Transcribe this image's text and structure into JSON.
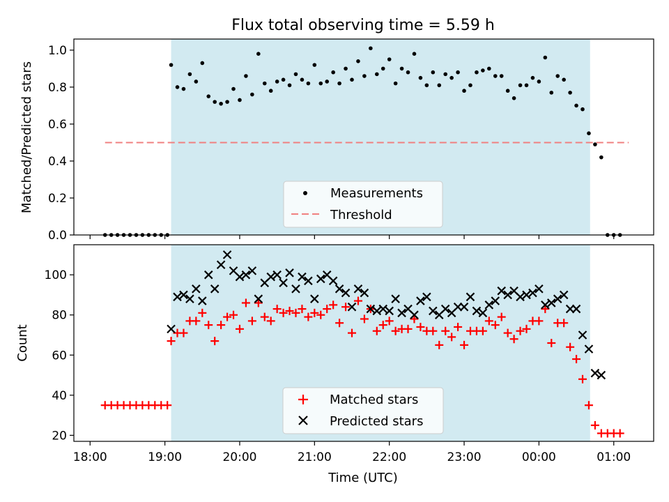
{
  "title": "Flux total observing time = 5.59 h",
  "chart_data": [
    {
      "type": "scatter",
      "panel": "top",
      "ylabel": "Matched/Predicted stars",
      "ylim": [
        0,
        1.06
      ],
      "yticks": [
        0.0,
        0.2,
        0.4,
        0.6,
        0.8,
        1.0
      ],
      "ytick_labels": [
        "0.0",
        "0.2",
        "0.4",
        "0.6",
        "0.8",
        "1.0"
      ],
      "legend": {
        "position": "bottom-center",
        "entries": [
          "Measurements",
          "Threshold"
        ]
      },
      "shaded_interval": {
        "start": "19:05",
        "end": "00:41",
        "color": "#add8e6"
      },
      "threshold": {
        "value": 0.5,
        "x": [
          "18:12",
          "01:12"
        ],
        "color": "#f08080",
        "style": "dashed"
      },
      "series": [
        {
          "name": "Measurements",
          "color": "#000000",
          "marker": "dot",
          "x": [
            "18:12",
            "18:17",
            "18:22",
            "18:27",
            "18:32",
            "18:37",
            "18:42",
            "18:47",
            "18:52",
            "18:57",
            "19:02",
            "19:05",
            "19:10",
            "19:15",
            "19:20",
            "19:25",
            "19:30",
            "19:35",
            "19:40",
            "19:45",
            "19:50",
            "19:55",
            "20:00",
            "20:05",
            "20:10",
            "20:15",
            "20:20",
            "20:25",
            "20:30",
            "20:35",
            "20:40",
            "20:45",
            "20:50",
            "20:55",
            "21:00",
            "21:05",
            "21:10",
            "21:15",
            "21:20",
            "21:25",
            "21:30",
            "21:35",
            "21:40",
            "21:45",
            "21:50",
            "21:55",
            "22:00",
            "22:05",
            "22:10",
            "22:15",
            "22:20",
            "22:25",
            "22:30",
            "22:35",
            "22:40",
            "22:45",
            "22:50",
            "22:55",
            "23:00",
            "23:05",
            "23:10",
            "23:15",
            "23:20",
            "23:25",
            "23:30",
            "23:35",
            "23:40",
            "23:45",
            "23:50",
            "23:55",
            "00:00",
            "00:05",
            "00:10",
            "00:15",
            "00:20",
            "00:25",
            "00:30",
            "00:35",
            "00:40",
            "00:45",
            "00:50",
            "00:55",
            "01:00",
            "01:05"
          ],
          "y": [
            0,
            0,
            0,
            0,
            0,
            0,
            0,
            0,
            0,
            0,
            0,
            0.92,
            0.8,
            0.79,
            0.87,
            0.83,
            0.93,
            0.75,
            0.72,
            0.71,
            0.72,
            0.79,
            0.73,
            0.86,
            0.76,
            0.98,
            0.82,
            0.78,
            0.83,
            0.84,
            0.81,
            0.87,
            0.84,
            0.82,
            0.92,
            0.82,
            0.83,
            0.88,
            0.82,
            0.9,
            0.84,
            0.94,
            0.86,
            1.01,
            0.87,
            0.9,
            0.95,
            0.82,
            0.9,
            0.88,
            0.98,
            0.85,
            0.81,
            0.88,
            0.81,
            0.87,
            0.85,
            0.88,
            0.78,
            0.81,
            0.88,
            0.89,
            0.9,
            0.86,
            0.86,
            0.78,
            0.74,
            0.81,
            0.81,
            0.85,
            0.83,
            0.96,
            0.77,
            0.86,
            0.84,
            0.77,
            0.7,
            0.68,
            0.55,
            0.49,
            0.42,
            0,
            0,
            0
          ]
        }
      ]
    },
    {
      "type": "scatter",
      "panel": "bottom",
      "xlabel": "Time (UTC)",
      "ylabel": "Count",
      "ylim": [
        17,
        115
      ],
      "yticks": [
        20,
        40,
        60,
        80,
        100
      ],
      "xlim": [
        "17:47",
        "01:32"
      ],
      "xticks": [
        "18:00",
        "19:00",
        "20:00",
        "21:00",
        "22:00",
        "23:00",
        "00:00",
        "01:00"
      ],
      "legend": {
        "position": "bottom-center",
        "entries": [
          "Matched stars",
          "Predicted stars"
        ]
      },
      "shaded_interval": {
        "start": "19:05",
        "end": "00:41",
        "color": "#add8e6"
      },
      "series": [
        {
          "name": "Matched stars",
          "color": "#ff0000",
          "marker": "plus",
          "x": [
            "18:12",
            "18:17",
            "18:22",
            "18:27",
            "18:32",
            "18:37",
            "18:42",
            "18:47",
            "18:52",
            "18:57",
            "19:02",
            "19:05",
            "19:10",
            "19:15",
            "19:20",
            "19:25",
            "19:30",
            "19:35",
            "19:40",
            "19:45",
            "19:50",
            "19:55",
            "20:00",
            "20:05",
            "20:10",
            "20:15",
            "20:20",
            "20:25",
            "20:30",
            "20:35",
            "20:40",
            "20:45",
            "20:50",
            "20:55",
            "21:00",
            "21:05",
            "21:10",
            "21:15",
            "21:20",
            "21:25",
            "21:30",
            "21:35",
            "21:40",
            "21:45",
            "21:50",
            "21:55",
            "22:00",
            "22:05",
            "22:10",
            "22:15",
            "22:20",
            "22:25",
            "22:30",
            "22:35",
            "22:40",
            "22:45",
            "22:50",
            "22:55",
            "23:00",
            "23:05",
            "23:10",
            "23:15",
            "23:20",
            "23:25",
            "23:30",
            "23:35",
            "23:40",
            "23:45",
            "23:50",
            "23:55",
            "00:00",
            "00:05",
            "00:10",
            "00:15",
            "00:20",
            "00:25",
            "00:30",
            "00:35",
            "00:40",
            "00:45",
            "00:50",
            "00:55",
            "01:00",
            "01:05"
          ],
          "y": [
            35,
            35,
            35,
            35,
            35,
            35,
            35,
            35,
            35,
            35,
            35,
            67,
            71,
            71,
            77,
            77,
            81,
            75,
            67,
            75,
            79,
            80,
            73,
            86,
            77,
            86,
            79,
            77,
            83,
            81,
            82,
            81,
            83,
            79,
            81,
            80,
            83,
            85,
            76,
            84,
            71,
            87,
            78,
            83,
            72,
            75,
            77,
            72,
            73,
            73,
            78,
            74,
            72,
            72,
            65,
            72,
            69,
            74,
            65,
            72,
            72,
            72,
            77,
            75,
            79,
            71,
            68,
            72,
            73,
            77,
            77,
            83,
            66,
            76,
            76,
            64,
            58,
            48,
            35,
            25,
            21,
            21,
            21,
            21
          ]
        },
        {
          "name": "Predicted stars",
          "color": "#000000",
          "marker": "x",
          "x": [
            "19:05",
            "19:10",
            "19:15",
            "19:20",
            "19:25",
            "19:30",
            "19:35",
            "19:40",
            "19:45",
            "19:50",
            "19:55",
            "20:00",
            "20:05",
            "20:10",
            "20:15",
            "20:20",
            "20:25",
            "20:30",
            "20:35",
            "20:40",
            "20:45",
            "20:50",
            "20:55",
            "21:00",
            "21:05",
            "21:10",
            "21:15",
            "21:20",
            "21:25",
            "21:30",
            "21:35",
            "21:40",
            "21:45",
            "21:50",
            "21:55",
            "22:00",
            "22:05",
            "22:10",
            "22:15",
            "22:20",
            "22:25",
            "22:30",
            "22:35",
            "22:40",
            "22:45",
            "22:50",
            "22:55",
            "23:00",
            "23:05",
            "23:10",
            "23:15",
            "23:20",
            "23:25",
            "23:30",
            "23:35",
            "23:40",
            "23:45",
            "23:50",
            "23:55",
            "00:00",
            "00:05",
            "00:10",
            "00:15",
            "00:20",
            "00:25",
            "00:30",
            "00:35",
            "00:40",
            "00:45",
            "00:50"
          ],
          "y": [
            73,
            89,
            90,
            88,
            93,
            87,
            100,
            93,
            105,
            110,
            102,
            99,
            100,
            102,
            88,
            96,
            99,
            100,
            96,
            101,
            93,
            99,
            97,
            88,
            98,
            100,
            97,
            93,
            91,
            84,
            93,
            91,
            83,
            82,
            83,
            82,
            88,
            81,
            83,
            80,
            87,
            89,
            82,
            80,
            83,
            81,
            84,
            84,
            89,
            82,
            81,
            85,
            87,
            92,
            90,
            92,
            89,
            90,
            91,
            93,
            85,
            86,
            88,
            90,
            83,
            83,
            70,
            63,
            51,
            50
          ]
        }
      ]
    }
  ]
}
